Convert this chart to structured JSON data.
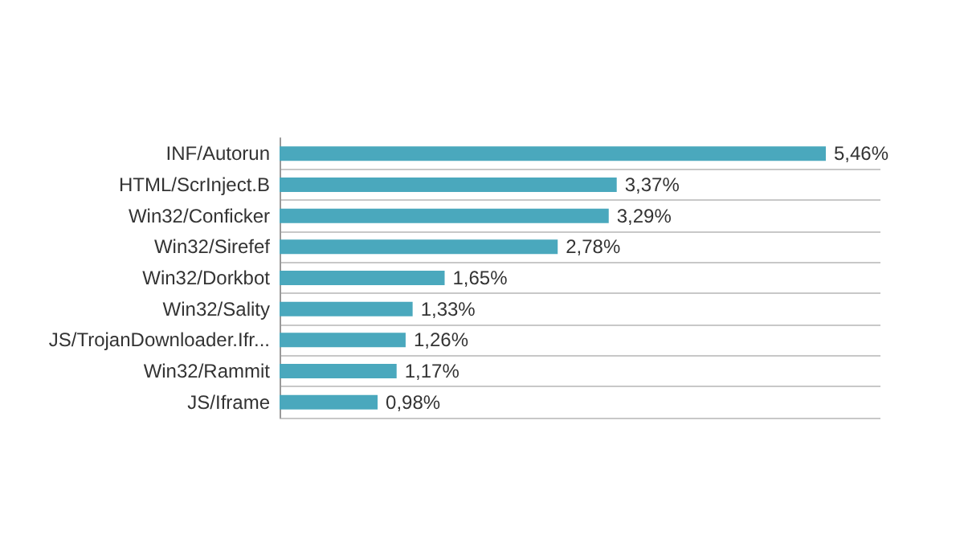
{
  "chart_data": {
    "type": "bar",
    "orientation": "horizontal",
    "grid": "y",
    "categories": [
      "INF/Autorun",
      "HTML/ScrInject.B",
      "Win32/Conficker",
      "Win32/Sirefef",
      "Win32/Dorkbot",
      "Win32/Sality",
      "JS/TrojanDownloader.Ifr...",
      "Win32/Rammit",
      "JS/Iframe"
    ],
    "values": [
      5.46,
      3.37,
      3.29,
      2.78,
      1.65,
      1.33,
      1.26,
      1.17,
      0.98
    ],
    "value_labels": [
      "5,46%",
      "3,37%",
      "3,29%",
      "2,78%",
      "1,65%",
      "1,33%",
      "1,26%",
      "1,17%",
      "0,98%"
    ],
    "color": "#4aa8bd"
  }
}
